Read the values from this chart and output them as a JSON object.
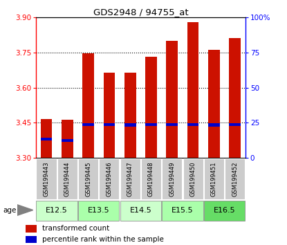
{
  "title": "GDS2948 / 94755_at",
  "samples": [
    "GSM199443",
    "GSM199444",
    "GSM199445",
    "GSM199446",
    "GSM199447",
    "GSM199448",
    "GSM199449",
    "GSM199450",
    "GSM199451",
    "GSM199452"
  ],
  "transformed_counts": [
    3.465,
    3.463,
    3.745,
    3.665,
    3.663,
    3.73,
    3.8,
    3.88,
    3.76,
    3.81
  ],
  "percentile_ranks": [
    3.375,
    3.37,
    3.437,
    3.437,
    3.435,
    3.437,
    3.437,
    3.437,
    3.435,
    3.437
  ],
  "ylim_left": [
    3.3,
    3.9
  ],
  "yticks_left": [
    3.3,
    3.45,
    3.6,
    3.75,
    3.9
  ],
  "yticks_right": [
    0,
    25,
    50,
    75,
    100
  ],
  "bar_bottom": 3.3,
  "bar_color": "#cc1100",
  "percentile_color": "#0000cc",
  "age_groups": [
    {
      "label": "E12.5",
      "samples": [
        0,
        1
      ],
      "color": "#ccffcc"
    },
    {
      "label": "E13.5",
      "samples": [
        2,
        3
      ],
      "color": "#aaffaa"
    },
    {
      "label": "E14.5",
      "samples": [
        4,
        5
      ],
      "color": "#ccffcc"
    },
    {
      "label": "E15.5",
      "samples": [
        6,
        7
      ],
      "color": "#aaffaa"
    },
    {
      "label": "E16.5",
      "samples": [
        8,
        9
      ],
      "color": "#66dd66"
    }
  ],
  "sample_panel_color": "#cccccc",
  "bar_width": 0.55,
  "percentile_bar_height": 0.012,
  "legend_red_label": "transformed count",
  "legend_blue_label": "percentile rank within the sample"
}
